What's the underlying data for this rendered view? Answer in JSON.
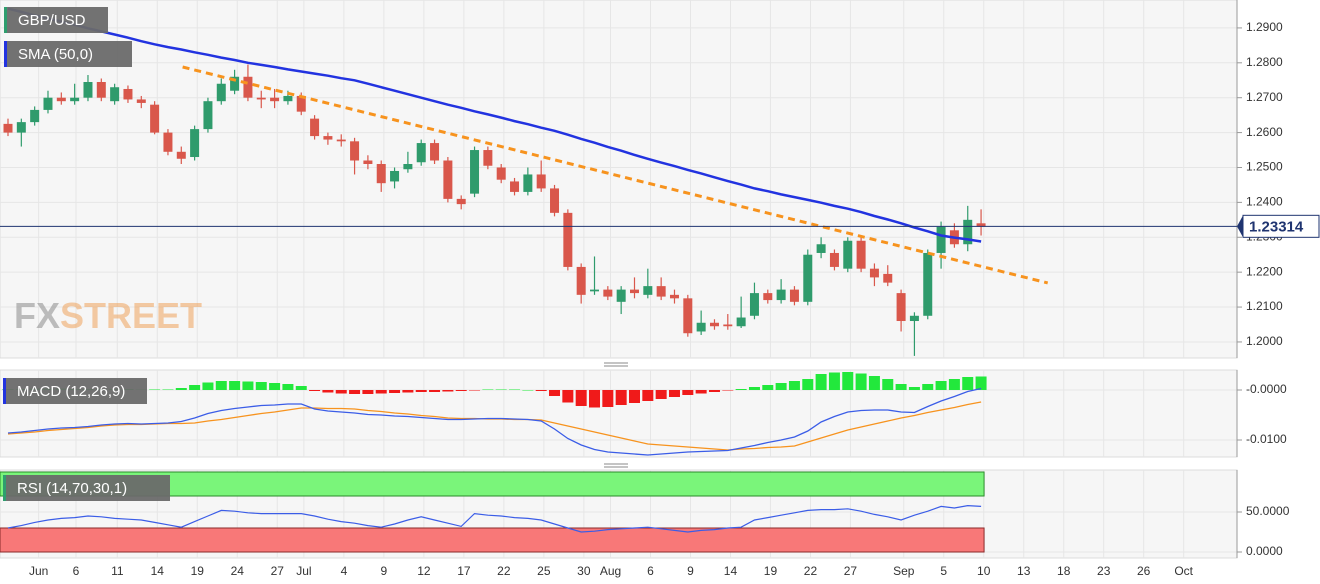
{
  "chart_data": [
    {
      "type": "candlestick",
      "title": "GBP/USD",
      "open": [
        1.2625,
        1.26,
        1.263,
        1.2665,
        1.27,
        1.269,
        1.27,
        1.2745,
        1.269,
        1.2725,
        1.2695,
        1.268,
        1.26,
        1.2545,
        1.253,
        1.261,
        1.269,
        1.272,
        1.276,
        1.27,
        1.27,
        1.269,
        1.2705,
        1.264,
        1.259,
        1.258,
        1.2575,
        1.252,
        1.251,
        1.246,
        1.2495,
        1.2515,
        1.257,
        1.252,
        1.241,
        1.2425,
        1.255,
        1.25,
        1.246,
        1.243,
        1.248,
        1.244,
        1.237,
        1.2215,
        1.2145,
        1.215,
        1.2115,
        1.215,
        1.2135,
        1.216,
        1.2135,
        1.2125,
        1.203,
        1.2055,
        1.205,
        1.2045,
        1.2075,
        1.214,
        1.212,
        1.215,
        1.2115,
        1.2255,
        1.2255,
        1.221,
        1.229,
        1.221,
        1.2195,
        1.214,
        1.206,
        1.2075,
        1.2255,
        1.232,
        1.228,
        1.234
      ],
      "high": [
        1.264,
        1.264,
        1.2675,
        1.272,
        1.2715,
        1.274,
        1.2765,
        1.2755,
        1.274,
        1.2735,
        1.2705,
        1.269,
        1.261,
        1.256,
        1.262,
        1.27,
        1.2755,
        1.278,
        1.2795,
        1.272,
        1.2725,
        1.272,
        1.2715,
        1.265,
        1.26,
        1.2595,
        1.2585,
        1.2535,
        1.252,
        1.25,
        1.2545,
        1.258,
        1.258,
        1.253,
        1.242,
        1.256,
        1.256,
        1.251,
        1.247,
        1.25,
        1.252,
        1.245,
        1.238,
        1.2225,
        1.2245,
        1.216,
        1.216,
        1.2185,
        1.221,
        1.2185,
        1.215,
        1.2135,
        1.209,
        1.2065,
        1.208,
        1.213,
        1.217,
        1.215,
        1.218,
        1.216,
        1.2265,
        1.23,
        1.2265,
        1.23,
        1.23,
        1.2225,
        1.222,
        1.215,
        1.2085,
        1.2265,
        1.2345,
        1.234,
        1.239,
        1.238
      ],
      "low": [
        1.259,
        1.256,
        1.262,
        1.2655,
        1.268,
        1.268,
        1.269,
        1.269,
        1.268,
        1.2685,
        1.267,
        1.2595,
        1.2535,
        1.251,
        1.252,
        1.26,
        1.268,
        1.271,
        1.269,
        1.267,
        1.267,
        1.268,
        1.265,
        1.258,
        1.2565,
        1.256,
        1.248,
        1.2495,
        1.243,
        1.244,
        1.2485,
        1.2505,
        1.251,
        1.24,
        1.238,
        1.2415,
        1.2495,
        1.2455,
        1.242,
        1.242,
        1.243,
        1.236,
        1.2205,
        1.211,
        1.2135,
        1.212,
        1.208,
        1.2125,
        1.2125,
        1.212,
        1.211,
        1.2015,
        1.202,
        1.2035,
        1.2035,
        1.204,
        1.2065,
        1.211,
        1.211,
        1.2105,
        1.2105,
        1.224,
        1.2205,
        1.22,
        1.22,
        1.216,
        1.216,
        1.203,
        1.196,
        1.2065,
        1.221,
        1.227,
        1.226,
        1.2305
      ],
      "close": [
        1.26,
        1.263,
        1.2665,
        1.27,
        1.269,
        1.27,
        1.2745,
        1.27,
        1.273,
        1.2695,
        1.2685,
        1.26,
        1.2545,
        1.2525,
        1.261,
        1.269,
        1.274,
        1.276,
        1.27,
        1.2695,
        1.269,
        1.2705,
        1.266,
        1.259,
        1.258,
        1.2575,
        1.252,
        1.251,
        1.2455,
        1.249,
        1.251,
        1.257,
        1.252,
        1.241,
        1.2395,
        1.255,
        1.2505,
        1.2465,
        1.243,
        1.248,
        1.244,
        1.237,
        1.2215,
        1.2135,
        1.215,
        1.213,
        1.215,
        1.214,
        1.216,
        1.213,
        1.2125,
        1.2025,
        1.2055,
        1.2045,
        1.2045,
        1.207,
        1.214,
        1.212,
        1.215,
        1.2115,
        1.225,
        1.228,
        1.2215,
        1.229,
        1.221,
        1.2185,
        1.217,
        1.206,
        1.2075,
        1.2255,
        1.233,
        1.228,
        1.235,
        1.233
      ],
      "up_color": "#2f9b6c",
      "down_color": "#d9574b",
      "sma": {
        "name": "SMA (50,0)",
        "color": "#2233e0",
        "values": [
          1.2955,
          1.2946,
          1.2936,
          1.2927,
          1.2918,
          1.2909,
          1.2899,
          1.289,
          1.2881,
          1.2872,
          1.2862,
          1.2853,
          1.2845,
          1.2838,
          1.283,
          1.2823,
          1.2815,
          1.2808,
          1.28,
          1.2794,
          1.2788,
          1.2781,
          1.2775,
          1.2769,
          1.2763,
          1.2756,
          1.275,
          1.274,
          1.273,
          1.272,
          1.271,
          1.27,
          1.269,
          1.268,
          1.2671,
          1.2661,
          1.2652,
          1.2643,
          1.2633,
          1.2624,
          1.2614,
          1.2605,
          1.2594,
          1.2582,
          1.2571,
          1.2559,
          1.2548,
          1.2536,
          1.2525,
          1.2514,
          1.2504,
          1.2493,
          1.2483,
          1.2472,
          1.2461,
          1.2451,
          1.244,
          1.2432,
          1.2423,
          1.2415,
          1.2407,
          1.2399,
          1.239,
          1.2382,
          1.2372,
          1.2361,
          1.2351,
          1.234,
          1.2328,
          1.2317,
          1.2305,
          1.2299,
          1.2294,
          1.2288
        ]
      },
      "trendline": {
        "x": [
          13.1,
          78.0
        ],
        "values": [
          1.2788,
          1.2169
        ],
        "color": "#f7931e"
      },
      "last_price": 1.23314,
      "last_price_color": "#1f3470",
      "watermark": {
        "fx": "FX",
        "street": "STREET"
      },
      "ylim": [
        1.1954,
        1.298
      ],
      "yticks": [
        {
          "value": 1.2,
          "label": "1.2000"
        },
        {
          "value": 1.21,
          "label": "1.2100"
        },
        {
          "value": 1.22,
          "label": "1.2200"
        },
        {
          "value": 1.23,
          "label": "1.2300"
        },
        {
          "value": 1.24,
          "label": "1.2400"
        },
        {
          "value": 1.25,
          "label": "1.2500"
        },
        {
          "value": 1.26,
          "label": "1.2600"
        },
        {
          "value": 1.27,
          "label": "1.2700"
        },
        {
          "value": 1.28,
          "label": "1.2800"
        },
        {
          "value": 1.29,
          "label": "1.2900"
        }
      ],
      "xlim": [
        -0.6,
        92.2
      ],
      "xticks": [
        {
          "value": 2.3,
          "label": "Jun"
        },
        {
          "value": 5.1,
          "label": "6"
        },
        {
          "value": 8.2,
          "label": "11"
        },
        {
          "value": 11.2,
          "label": "14"
        },
        {
          "value": 14.2,
          "label": "19"
        },
        {
          "value": 17.2,
          "label": "24"
        },
        {
          "value": 20.2,
          "label": "27"
        },
        {
          "value": 22.2,
          "label": "Jul"
        },
        {
          "value": 25.2,
          "label": "4"
        },
        {
          "value": 28.2,
          "label": "9"
        },
        {
          "value": 31.2,
          "label": "12"
        },
        {
          "value": 34.2,
          "label": "17"
        },
        {
          "value": 37.2,
          "label": "22"
        },
        {
          "value": 40.2,
          "label": "25"
        },
        {
          "value": 43.2,
          "label": "30"
        },
        {
          "value": 45.2,
          "label": "Aug"
        },
        {
          "value": 48.2,
          "label": "6"
        },
        {
          "value": 51.2,
          "label": "9"
        },
        {
          "value": 54.2,
          "label": "14"
        },
        {
          "value": 57.2,
          "label": "19"
        },
        {
          "value": 60.2,
          "label": "22"
        },
        {
          "value": 63.2,
          "label": "27"
        },
        {
          "value": 67.2,
          "label": "Sep"
        },
        {
          "value": 70.2,
          "label": "5"
        },
        {
          "value": 73.2,
          "label": "10"
        },
        {
          "value": 76.2,
          "label": "13"
        },
        {
          "value": 79.2,
          "label": "18"
        },
        {
          "value": 82.2,
          "label": "23"
        },
        {
          "value": 85.2,
          "label": "26"
        },
        {
          "value": 88.2,
          "label": "Oct"
        }
      ],
      "grid": true
    },
    {
      "type": "macd",
      "title": "MACD (12,26,9)",
      "histogram": {
        "up_color": "#22e83c",
        "down_color": "#f01a1a",
        "values": [
          0.0002,
          0.0002,
          0.0003,
          0.0003,
          0.0003,
          0.0002,
          0.0002,
          0.0002,
          0.0002,
          0.0002,
          0.0001,
          0.0001,
          0.0001,
          0.0004,
          0.001,
          0.0015,
          0.0018,
          0.0018,
          0.0017,
          0.0016,
          0.0014,
          0.0012,
          0.0008,
          -0.0002,
          -0.0005,
          -0.0007,
          -0.0008,
          -0.0008,
          -0.0007,
          -0.0006,
          -0.0005,
          -0.0004,
          -0.0004,
          -0.0003,
          -0.0002,
          -0.0001,
          0.0001,
          0.0001,
          0.0001,
          0,
          -0.0002,
          -0.0012,
          -0.0025,
          -0.0032,
          -0.0035,
          -0.0034,
          -0.003,
          -0.0026,
          -0.0022,
          -0.0018,
          -0.0014,
          -0.001,
          -0.0007,
          -0.0004,
          -0.0001,
          0.0002,
          0.0006,
          0.001,
          0.0014,
          0.0018,
          0.0022,
          0.0032,
          0.0035,
          0.0036,
          0.0033,
          0.0028,
          0.0022,
          0.0012,
          0.0006,
          0.0012,
          0.0018,
          0.0022,
          0.0026,
          0.0027
        ]
      },
      "macd": {
        "color": "#3b5de7",
        "values": [
          -0.0086,
          -0.0084,
          -0.0081,
          -0.0078,
          -0.0076,
          -0.0075,
          -0.0073,
          -0.007,
          -0.0068,
          -0.0067,
          -0.0068,
          -0.0067,
          -0.0066,
          -0.0063,
          -0.0056,
          -0.0047,
          -0.0041,
          -0.0037,
          -0.0034,
          -0.0031,
          -0.003,
          -0.0028,
          -0.0028,
          -0.0038,
          -0.0042,
          -0.0044,
          -0.0046,
          -0.0049,
          -0.005,
          -0.0052,
          -0.0053,
          -0.0055,
          -0.0057,
          -0.0059,
          -0.0059,
          -0.0058,
          -0.0057,
          -0.0057,
          -0.0058,
          -0.0059,
          -0.0062,
          -0.0078,
          -0.0097,
          -0.011,
          -0.0119,
          -0.0124,
          -0.0126,
          -0.0128,
          -0.013,
          -0.0128,
          -0.0126,
          -0.0124,
          -0.0123,
          -0.0122,
          -0.0121,
          -0.0116,
          -0.0111,
          -0.0105,
          -0.01,
          -0.0094,
          -0.0082,
          -0.0064,
          -0.0053,
          -0.0044,
          -0.0041,
          -0.004,
          -0.004,
          -0.0044,
          -0.0045,
          -0.0033,
          -0.0022,
          -0.0013,
          -0.0003,
          0.0003
        ]
      },
      "signal": {
        "color": "#f7931e",
        "values": [
          -0.0088,
          -0.0086,
          -0.0084,
          -0.0081,
          -0.0079,
          -0.0077,
          -0.0075,
          -0.0072,
          -0.007,
          -0.0069,
          -0.0069,
          -0.0068,
          -0.0067,
          -0.0067,
          -0.0066,
          -0.0062,
          -0.0059,
          -0.0055,
          -0.0051,
          -0.0047,
          -0.0044,
          -0.004,
          -0.0036,
          -0.0036,
          -0.0037,
          -0.0037,
          -0.0038,
          -0.0041,
          -0.0043,
          -0.0046,
          -0.0048,
          -0.0051,
          -0.0053,
          -0.0056,
          -0.0057,
          -0.0057,
          -0.0058,
          -0.0058,
          -0.0059,
          -0.0059,
          -0.006,
          -0.0066,
          -0.0072,
          -0.0078,
          -0.0084,
          -0.009,
          -0.0096,
          -0.0102,
          -0.0108,
          -0.011,
          -0.0112,
          -0.0114,
          -0.0116,
          -0.0118,
          -0.012,
          -0.0118,
          -0.0117,
          -0.0115,
          -0.0114,
          -0.0112,
          -0.0104,
          -0.0096,
          -0.0088,
          -0.008,
          -0.0074,
          -0.0068,
          -0.0062,
          -0.0056,
          -0.0051,
          -0.0045,
          -0.004,
          -0.0035,
          -0.0029,
          -0.0024
        ]
      },
      "ylim": [
        -0.0134,
        0.004
      ],
      "yticks": [
        {
          "value": 0,
          "label": "-0.0000"
        },
        {
          "value": -0.01,
          "label": "-0.0100"
        }
      ]
    },
    {
      "type": "rsi",
      "title": "RSI (14,70,30,1)",
      "color": "#3b5de7",
      "values": [
        30,
        33,
        37,
        40,
        42,
        43,
        45,
        44,
        42,
        41,
        40,
        37,
        34,
        31,
        38,
        45,
        52,
        51,
        49,
        48,
        48,
        48,
        48,
        45,
        41,
        38,
        36,
        33,
        31,
        35,
        40,
        44,
        40,
        36,
        32,
        48,
        46,
        45,
        43,
        42,
        40,
        35,
        30,
        25,
        26,
        28,
        29,
        30,
        31,
        29,
        27,
        25,
        27,
        28,
        30,
        31,
        40,
        43,
        46,
        49,
        52,
        53,
        53,
        54,
        51,
        47,
        44,
        40,
        46,
        51,
        57,
        55,
        58,
        57
      ],
      "overbought": 70,
      "oversold": 30,
      "overbought_color": "#7af57a",
      "oversold_color": "#f87878",
      "ylim": [
        -7.5,
        102.5
      ],
      "yticks": [
        {
          "value": 50,
          "label": "50.0000"
        },
        {
          "value": 0,
          "label": "0.0000"
        }
      ]
    }
  ]
}
